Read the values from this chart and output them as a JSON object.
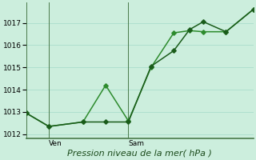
{
  "xlabel": "Pression niveau de la mer( hPa )",
  "bg_color": "#cceedd",
  "grid_color": "#aaddcc",
  "line_color1": "#1a5c1a",
  "line_color2": "#2d8b2d",
  "ylim": [
    1011.8,
    1017.9
  ],
  "xlim": [
    0,
    10
  ],
  "ytick_positions": [
    1012,
    1013,
    1014,
    1015,
    1016,
    1017
  ],
  "xtick_positions": [
    1.0,
    4.5
  ],
  "xtick_labels": [
    "Ven",
    "Sam"
  ],
  "vline_x": [
    1.0,
    4.5
  ],
  "series1_x": [
    0.0,
    1.0,
    2.5,
    3.5,
    4.5,
    5.5,
    6.5,
    7.2,
    7.8,
    8.8,
    10.0
  ],
  "series1_y": [
    1012.95,
    1012.35,
    1012.55,
    1012.55,
    1012.55,
    1015.05,
    1015.75,
    1016.7,
    1017.05,
    1016.6,
    1017.6
  ],
  "series2_x": [
    0.0,
    1.0,
    2.5,
    3.5,
    4.5,
    5.5,
    6.5,
    7.2,
    7.8,
    8.8,
    10.0
  ],
  "series2_y": [
    1012.95,
    1012.35,
    1012.55,
    1014.2,
    1012.6,
    1015.0,
    1016.55,
    1016.65,
    1016.6,
    1016.6,
    1017.6
  ],
  "markersize": 2.8,
  "linewidth": 1.1,
  "xlabel_fontsize": 8,
  "tick_fontsize": 6.5
}
